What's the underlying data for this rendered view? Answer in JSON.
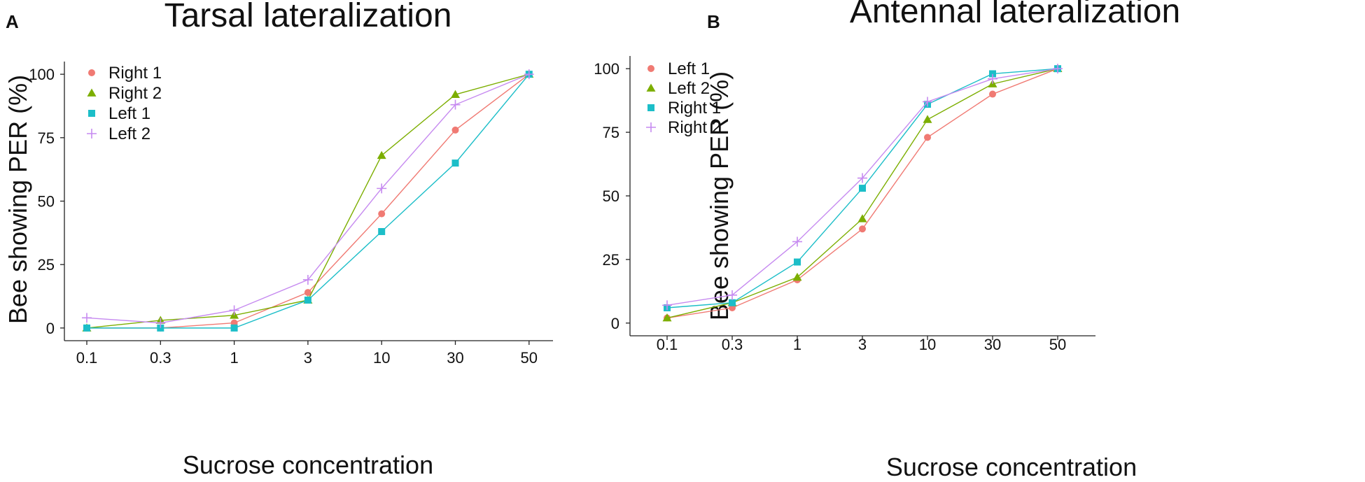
{
  "colors": {
    "red": "#F07A73",
    "green": "#7CAE00",
    "cyan": "#1CBEC8",
    "purple": "#C68AF0"
  },
  "chart_data": [
    {
      "panel": "A",
      "type": "line",
      "title": "Tarsal lateralization",
      "xlabel": "Sucrose concentration",
      "ylabel": "Bee showing PER (%)",
      "categories": [
        "0.1",
        "0.3",
        "1",
        "3",
        "10",
        "30",
        "50"
      ],
      "yticks": [
        0,
        25,
        50,
        75,
        100
      ],
      "ylim": [
        -5,
        105
      ],
      "legend_position": "top-left",
      "series": [
        {
          "name": "Right 1",
          "marker": "circle",
          "color": "red",
          "values": [
            0,
            0,
            2,
            14,
            45,
            78,
            100
          ]
        },
        {
          "name": "Right 2",
          "marker": "triangle",
          "color": "green",
          "values": [
            0,
            3,
            5,
            11,
            68,
            92,
            100
          ]
        },
        {
          "name": "Left 1",
          "marker": "square",
          "color": "cyan",
          "values": [
            0,
            0,
            0,
            11,
            38,
            65,
            100
          ]
        },
        {
          "name": "Left 2",
          "marker": "plus",
          "color": "purple",
          "values": [
            4,
            2,
            7,
            19,
            55,
            88,
            100
          ]
        }
      ]
    },
    {
      "panel": "B",
      "type": "line",
      "title": "Antennal lateralization",
      "xlabel": "Sucrose concentration",
      "ylabel": "Bee showing PER (%)",
      "categories": [
        "0.1",
        "0.3",
        "1",
        "3",
        "10",
        "30",
        "50"
      ],
      "yticks": [
        0,
        25,
        50,
        75,
        100
      ],
      "ylim": [
        -5,
        105
      ],
      "legend_position": "top-left",
      "series": [
        {
          "name": "Left 1",
          "marker": "circle",
          "color": "red",
          "values": [
            2,
            6,
            17,
            37,
            73,
            90,
            100
          ]
        },
        {
          "name": "Left 2",
          "marker": "triangle",
          "color": "green",
          "values": [
            2,
            8,
            18,
            41,
            80,
            94,
            100
          ]
        },
        {
          "name": "Right 1",
          "marker": "square",
          "color": "cyan",
          "values": [
            6,
            8,
            24,
            53,
            86,
            98,
            100
          ]
        },
        {
          "name": "Right 2",
          "marker": "plus",
          "color": "purple",
          "values": [
            7,
            11,
            32,
            57,
            87,
            96,
            100
          ]
        }
      ]
    }
  ]
}
